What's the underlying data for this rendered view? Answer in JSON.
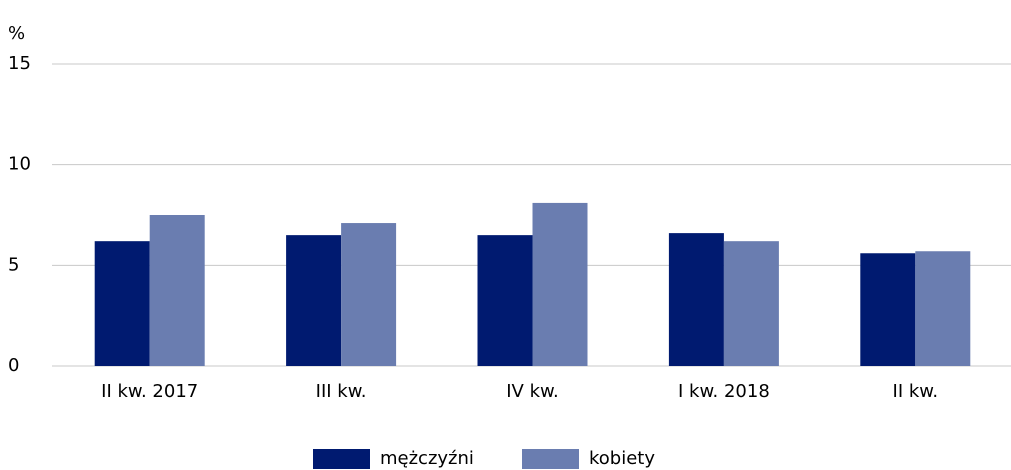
{
  "chart_data": {
    "type": "bar",
    "y_label": "%",
    "categories": [
      "II kw. 2017",
      "III kw.",
      "IV kw.",
      "I kw. 2018",
      "II kw."
    ],
    "series": [
      {
        "name": "mężczyźni",
        "color": "#001a70",
        "values": [
          6.2,
          6.5,
          6.5,
          6.6,
          5.6
        ]
      },
      {
        "name": "kobiety",
        "color": "#6a7db0",
        "values": [
          7.5,
          7.1,
          8.1,
          6.2,
          5.7
        ]
      }
    ],
    "ylim": [
      0,
      15
    ],
    "yticks": [
      0,
      5,
      10,
      15
    ],
    "grid": true,
    "legend": "bottom"
  }
}
